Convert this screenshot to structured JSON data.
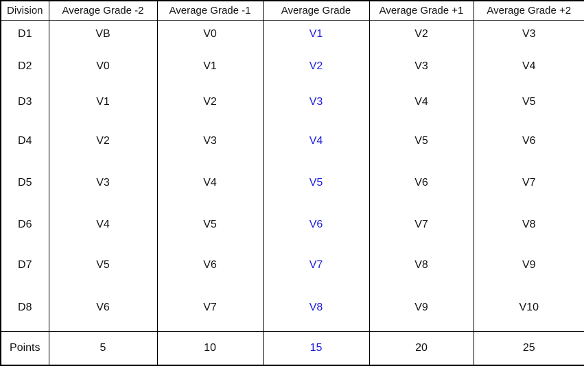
{
  "chart_data": {
    "type": "table",
    "columns": [
      "Division",
      "Average Grade -2",
      "Average Grade -1",
      "Average Grade",
      "Average Grade +1",
      "Average Grade +2"
    ],
    "rows": [
      {
        "division": "D1",
        "values": [
          "VB",
          "V0",
          "V1",
          "V2",
          "V3"
        ]
      },
      {
        "division": "D2",
        "values": [
          "V0",
          "V1",
          "V2",
          "V3",
          "V4"
        ]
      },
      {
        "division": "D3",
        "values": [
          "V1",
          "V2",
          "V3",
          "V4",
          "V5"
        ]
      },
      {
        "division": "D4",
        "values": [
          "V2",
          "V3",
          "V4",
          "V5",
          "V6"
        ]
      },
      {
        "division": "D5",
        "values": [
          "V3",
          "V4",
          "V5",
          "V6",
          "V7"
        ]
      },
      {
        "division": "D6",
        "values": [
          "V4",
          "V5",
          "V6",
          "V7",
          "V8"
        ]
      },
      {
        "division": "D7",
        "values": [
          "V5",
          "V6",
          "V7",
          "V8",
          "V9"
        ]
      },
      {
        "division": "D8",
        "values": [
          "V6",
          "V7",
          "V8",
          "V9",
          "V10"
        ]
      }
    ],
    "footer": {
      "label": "Points",
      "values": [
        "5",
        "10",
        "15",
        "20",
        "25"
      ]
    },
    "highlighted_column": "Average Grade"
  },
  "colors": {
    "highlight_text": "#1a1ae0",
    "body_text": "#111111",
    "border": "#000000",
    "background": "#ffffff"
  }
}
